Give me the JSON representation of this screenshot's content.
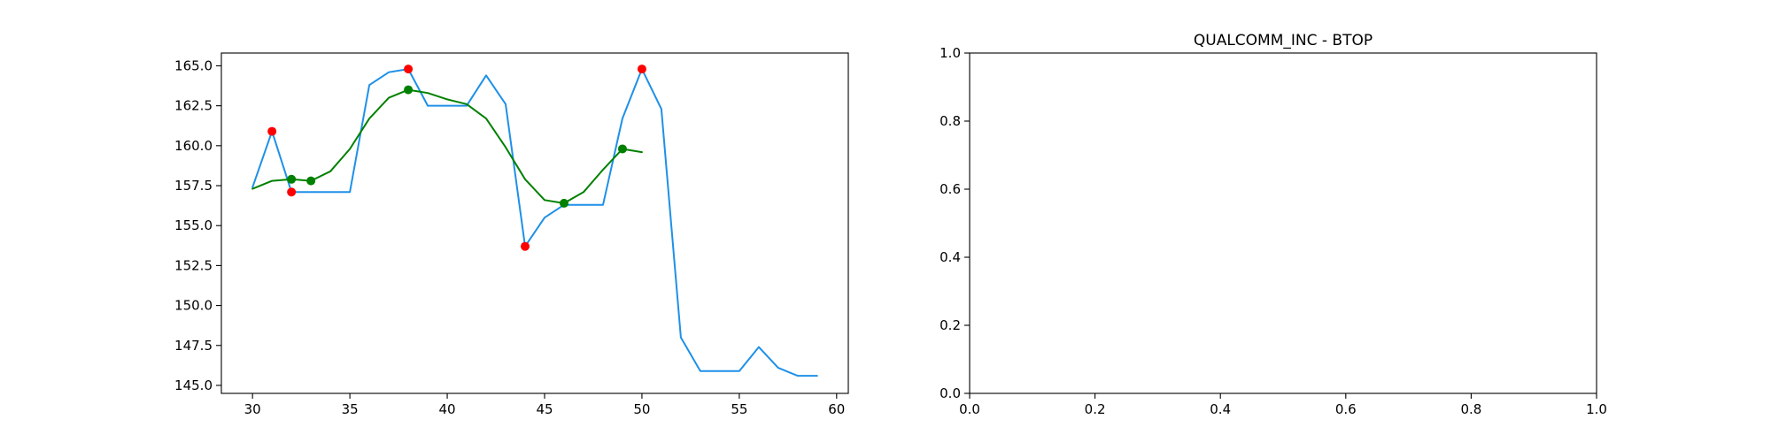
{
  "chart_data": [
    {
      "type": "line",
      "title": "",
      "xlabel": "",
      "ylabel": "",
      "xlim": [
        28.4,
        60.6
      ],
      "ylim": [
        144.5,
        165.8
      ],
      "xticks": [
        30,
        35,
        40,
        45,
        50,
        55,
        60
      ],
      "xtick_labels": [
        "30",
        "35",
        "40",
        "45",
        "50",
        "55",
        "60"
      ],
      "yticks": [
        145.0,
        147.5,
        150.0,
        152.5,
        155.0,
        157.5,
        160.0,
        162.5,
        165.0
      ],
      "ytick_labels": [
        "145.0",
        "147.5",
        "150.0",
        "152.5",
        "155.0",
        "157.5",
        "160.0",
        "162.5",
        "165.0"
      ],
      "grid": false,
      "series": [
        {
          "style": "line",
          "color": "#1e90e8",
          "x": [
            30,
            31,
            32,
            33,
            34,
            35,
            36,
            37,
            38,
            39,
            40,
            41,
            42,
            43,
            44,
            45,
            46,
            47,
            48,
            49,
            50,
            51,
            52,
            53,
            54,
            55,
            56,
            57,
            58,
            59
          ],
          "y": [
            157.4,
            160.9,
            157.1,
            157.1,
            157.1,
            157.1,
            163.8,
            164.6,
            164.8,
            162.5,
            162.5,
            162.5,
            164.4,
            162.6,
            153.7,
            155.5,
            156.3,
            156.3,
            156.3,
            161.7,
            164.8,
            162.3,
            148.0,
            145.9,
            145.9,
            145.9,
            147.4,
            146.1,
            145.6,
            145.6
          ]
        },
        {
          "style": "line",
          "color": "#008000",
          "x": [
            30,
            31,
            32,
            33,
            34,
            35,
            36,
            37,
            38,
            39,
            40,
            41,
            42,
            43,
            44,
            45,
            46,
            47,
            48,
            49,
            50
          ],
          "y": [
            157.3,
            157.8,
            157.9,
            157.8,
            158.4,
            159.8,
            161.7,
            163.0,
            163.5,
            163.3,
            162.9,
            162.6,
            161.7,
            159.9,
            157.9,
            156.6,
            156.4,
            157.1,
            158.5,
            159.8,
            159.6
          ]
        },
        {
          "style": "scatter",
          "color": "#ff0000",
          "x": [
            31,
            32,
            38,
            44,
            50
          ],
          "y": [
            160.9,
            157.1,
            164.8,
            153.7,
            164.8
          ]
        },
        {
          "style": "scatter",
          "color": "#008000",
          "x": [
            32,
            33,
            38,
            46,
            49
          ],
          "y": [
            157.9,
            157.8,
            163.5,
            156.4,
            159.8
          ]
        }
      ]
    },
    {
      "type": "line",
      "title": "QUALCOMM_INC - BTOP",
      "xlabel": "",
      "ylabel": "",
      "xlim": [
        0.0,
        1.0
      ],
      "ylim": [
        0.0,
        1.0
      ],
      "xticks": [
        0.0,
        0.2,
        0.4,
        0.6,
        0.8,
        1.0
      ],
      "xtick_labels": [
        "0.0",
        "0.2",
        "0.4",
        "0.6",
        "0.8",
        "1.0"
      ],
      "yticks": [
        0.0,
        0.2,
        0.4,
        0.6,
        0.8,
        1.0
      ],
      "ytick_labels": [
        "0.0",
        "0.2",
        "0.4",
        "0.6",
        "0.8",
        "1.0"
      ],
      "grid": false,
      "series": []
    }
  ]
}
